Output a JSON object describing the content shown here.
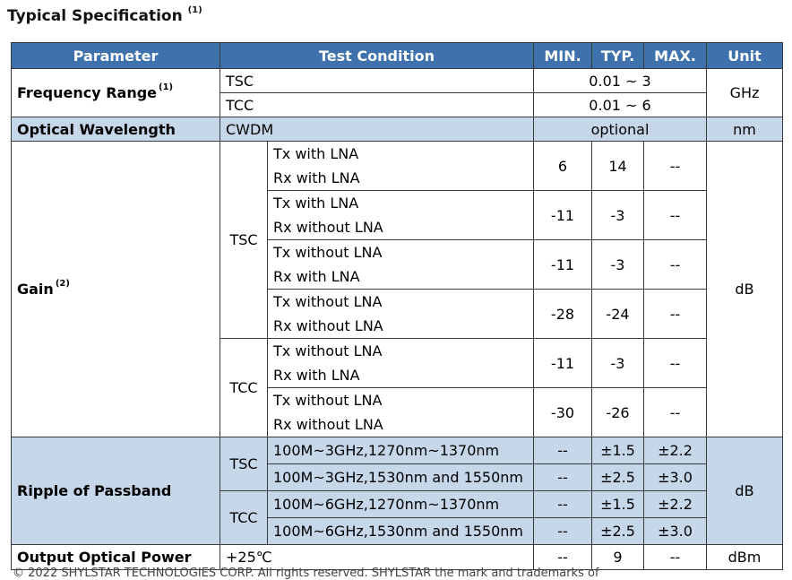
{
  "title": {
    "text": "Typical Specification",
    "note": "(1)"
  },
  "headers": {
    "parameter": "Parameter",
    "test_condition": "Test Condition",
    "min": "MIN.",
    "typ": "TYP.",
    "max": "MAX.",
    "unit": "Unit"
  },
  "frequency_range": {
    "label": "Frequency Range",
    "note": "(1)",
    "tsc_cond": "TSC",
    "tsc_value": "0.01 ~ 3",
    "tcc_cond": "TCC",
    "tcc_value": "0.01 ~ 6",
    "unit": "GHz"
  },
  "optical_wavelength": {
    "label": "Optical Wavelength",
    "cond": "CWDM",
    "value": "optional",
    "unit": "nm"
  },
  "gain": {
    "label": "Gain",
    "note": "(2)",
    "unit": "dB",
    "tsc": "TSC",
    "tcc": "TCC",
    "rows": [
      {
        "tx": "Tx with LNA",
        "rx": "Rx with LNA",
        "min": "6",
        "typ": "14",
        "max": "--"
      },
      {
        "tx": "Tx with LNA",
        "rx": "Rx without LNA",
        "min": "-11",
        "typ": "-3",
        "max": "--"
      },
      {
        "tx": "Tx without LNA",
        "rx": "Rx with LNA",
        "min": "-11",
        "typ": "-3",
        "max": "--"
      },
      {
        "tx": "Tx without LNA",
        "rx": "Rx without LNA",
        "min": "-28",
        "typ": "-24",
        "max": "--"
      },
      {
        "tx": "Tx without LNA",
        "rx": "Rx with LNA",
        "min": "-11",
        "typ": "-3",
        "max": "--"
      },
      {
        "tx": "Tx without LNA",
        "rx": "Rx without LNA",
        "min": "-30",
        "typ": "-26",
        "max": "--"
      }
    ]
  },
  "ripple": {
    "label": "Ripple of Passband",
    "unit": "dB",
    "tsc": "TSC",
    "tcc": "TCC",
    "rows": [
      {
        "cond": "100M~3GHz,1270nm~1370nm",
        "min": "--",
        "typ": "±1.5",
        "max": "±2.2"
      },
      {
        "cond": "100M~3GHz,1530nm and 1550nm",
        "min": "--",
        "typ": "±2.5",
        "max": "±3.0"
      },
      {
        "cond": "100M~6GHz,1270nm~1370nm",
        "min": "--",
        "typ": "±1.5",
        "max": "±2.2"
      },
      {
        "cond": "100M~6GHz,1530nm and 1550nm",
        "min": "--",
        "typ": "±2.5",
        "max": "±3.0"
      }
    ]
  },
  "output_power": {
    "label": "Output Optical Power",
    "cond": "+25℃",
    "min": "--",
    "typ": "9",
    "max": "--",
    "unit": "dBm"
  },
  "footer": {
    "text": "© 2022 SHYLSTAR TECHNOLOGIES CORP. All rights reserved. SHYLSTAR the mark and trademarks of"
  }
}
